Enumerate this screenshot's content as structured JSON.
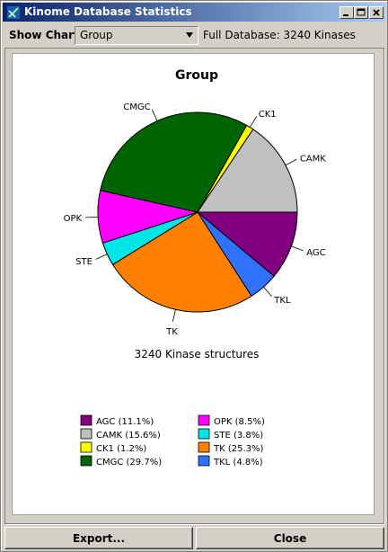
{
  "window": {
    "title": "Kinome Database Statistics",
    "minimize_symbol": "_",
    "maximize_symbol": "□",
    "close_symbol": "X"
  },
  "toolbar": {
    "show_chart_label": "Show Chart:",
    "chart_select_value": "Group",
    "full_database_text": "Full Database: 3240 Kinases"
  },
  "chart_data": {
    "type": "pie",
    "title": "Group",
    "subtitle": "3240 Kinase structures",
    "total": 3240,
    "slices": [
      {
        "label": "AGC",
        "percent": 11.1,
        "color": "#800080",
        "legend": "AGC (11.1%)"
      },
      {
        "label": "TKL",
        "percent": 4.8,
        "color": "#3072ff",
        "legend": "TKL (4.8%)"
      },
      {
        "label": "TK",
        "percent": 25.3,
        "color": "#ff8000",
        "legend": "TK (25.3%)"
      },
      {
        "label": "STE",
        "percent": 3.8,
        "color": "#00e6e6",
        "legend": "STE (3.8%)"
      },
      {
        "label": "OPK",
        "percent": 8.5,
        "color": "#ff00ff",
        "legend": "OPK (8.5%)"
      },
      {
        "label": "CMGC",
        "percent": 29.7,
        "color": "#006400",
        "legend": "CMGC (29.7%)"
      },
      {
        "label": "CK1",
        "percent": 1.2,
        "color": "#ffff00",
        "legend": "CK1 (1.2%)"
      },
      {
        "label": "CAMK",
        "percent": 15.6,
        "color": "#c0c0c0",
        "legend": "CAMK (15.6%)"
      }
    ],
    "legend_order": [
      "AGC",
      "CAMK",
      "CK1",
      "CMGC",
      "OPK",
      "STE",
      "TK",
      "TKL"
    ]
  },
  "footer": {
    "export_label": "Export...",
    "close_label": "Close"
  }
}
